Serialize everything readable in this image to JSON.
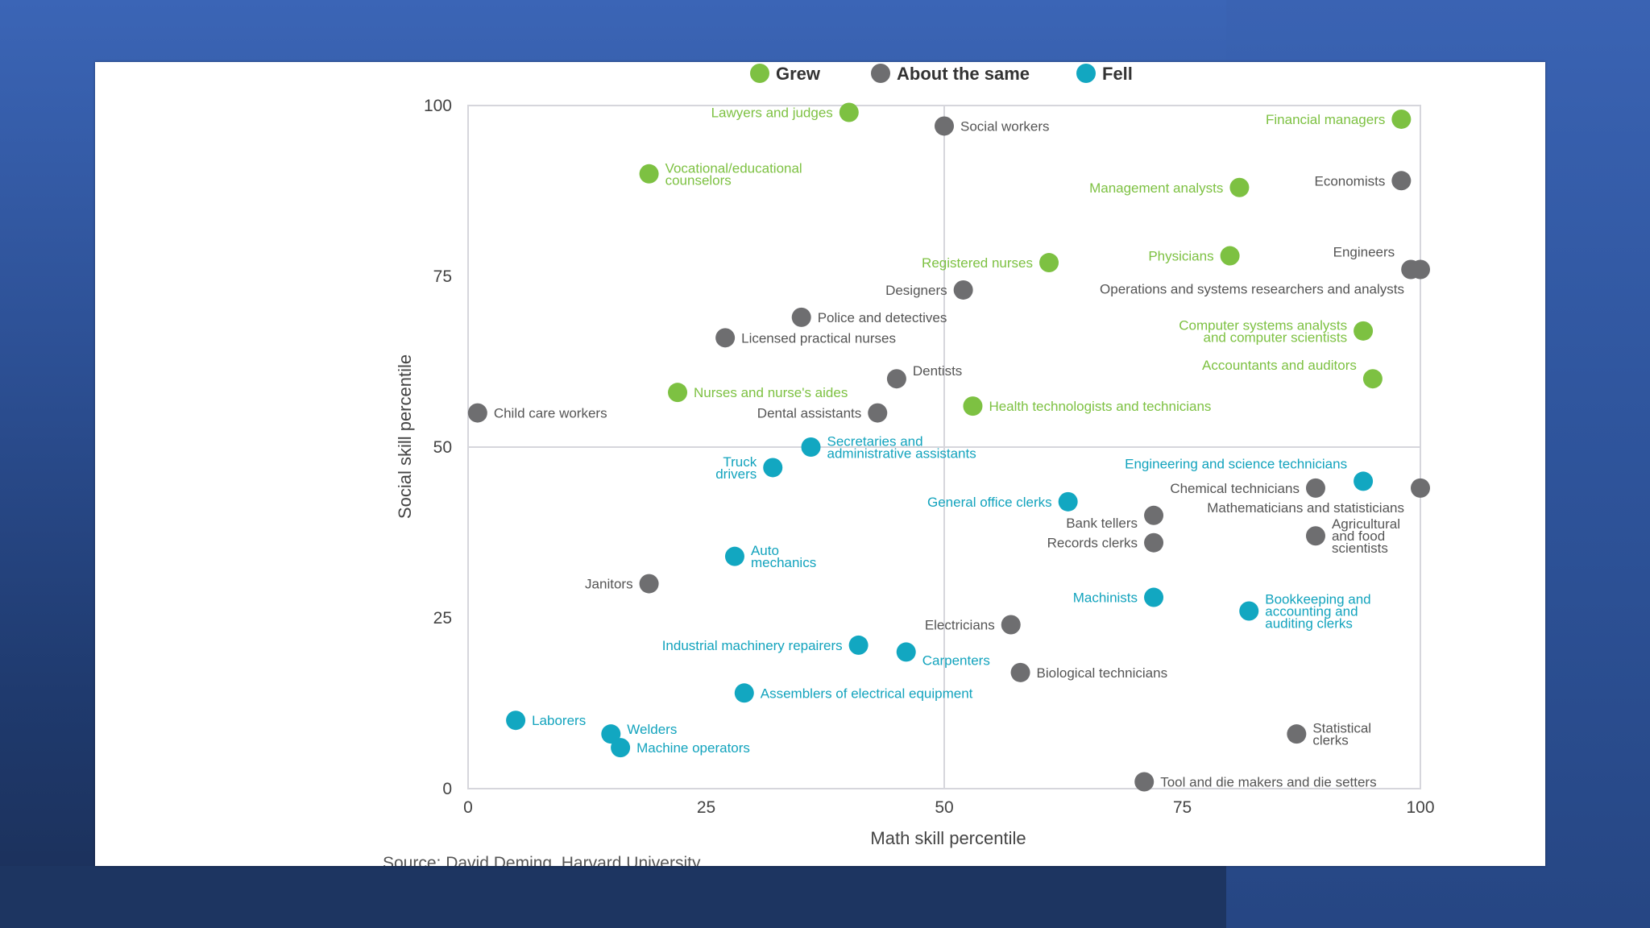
{
  "chart_data": {
    "type": "scatter",
    "xlabel": "Math skill percentile",
    "ylabel": "Social skill percentile",
    "xlim": [
      0,
      100
    ],
    "ylim": [
      0,
      100
    ],
    "xticks": [
      "0",
      "25",
      "50",
      "75",
      "100"
    ],
    "yticks": [
      "0",
      "25",
      "50",
      "75",
      "100"
    ],
    "grid": "center lines at 50",
    "legend": {
      "placement": "top",
      "entries": [
        {
          "key": "grew",
          "label": "Grew",
          "color": "#7dc142"
        },
        {
          "key": "same",
          "label": "About the same",
          "color": "#6e6e70"
        },
        {
          "key": "fell",
          "label": "Fell",
          "color": "#12a7c1"
        }
      ]
    },
    "colors": {
      "grew_text": "#7dc142",
      "same_text": "#555555",
      "fell_text": "#12a3bd"
    },
    "points": [
      {
        "label": [
          "Lawyers and judges"
        ],
        "x": 40,
        "y": 99,
        "group": "grew",
        "side": "left"
      },
      {
        "label": [
          "Social workers"
        ],
        "x": 50,
        "y": 97,
        "group": "same",
        "side": "right"
      },
      {
        "label": [
          "Financial managers"
        ],
        "x": 98,
        "y": 98,
        "group": "grew",
        "side": "left"
      },
      {
        "label": [
          "Vocational/educational",
          "counselors"
        ],
        "x": 19,
        "y": 90,
        "group": "grew",
        "side": "right"
      },
      {
        "label": [
          "Management analysts"
        ],
        "x": 81,
        "y": 88,
        "group": "grew",
        "side": "left"
      },
      {
        "label": [
          "Economists"
        ],
        "x": 98,
        "y": 89,
        "group": "same",
        "side": "left"
      },
      {
        "label": [
          "Registered nurses"
        ],
        "x": 61,
        "y": 77,
        "group": "grew",
        "side": "left"
      },
      {
        "label": [
          "Physicians"
        ],
        "x": 80,
        "y": 78,
        "group": "grew",
        "side": "left"
      },
      {
        "label": [
          "Engineers"
        ],
        "x": 99,
        "y": 76,
        "group": "same",
        "side": "left",
        "dy": -22
      },
      {
        "label": [
          "Designers"
        ],
        "x": 52,
        "y": 73,
        "group": "same",
        "side": "left"
      },
      {
        "label": [
          "Operations and systems researchers and analysts"
        ],
        "x": 100,
        "y": 76,
        "group": "same",
        "side": "left",
        "dy": 24
      },
      {
        "label": [
          "Police and detectives"
        ],
        "x": 35,
        "y": 69,
        "group": "same",
        "side": "right"
      },
      {
        "label": [
          "Licensed practical nurses"
        ],
        "x": 27,
        "y": 66,
        "group": "same",
        "side": "right"
      },
      {
        "label": [
          "Computer systems analysts",
          "and computer scientists"
        ],
        "x": 94,
        "y": 67,
        "group": "grew",
        "side": "left"
      },
      {
        "label": [
          "Dentists"
        ],
        "x": 45,
        "y": 60,
        "group": "same",
        "side": "right",
        "dy": -10
      },
      {
        "label": [
          "Accountants and auditors"
        ],
        "x": 95,
        "y": 60,
        "group": "grew",
        "side": "left",
        "dy": -17
      },
      {
        "label": [
          "Nurses and nurse's aides"
        ],
        "x": 22,
        "y": 58,
        "group": "grew",
        "side": "right"
      },
      {
        "label": [
          "Child care workers"
        ],
        "x": 1,
        "y": 55,
        "group": "same",
        "side": "right"
      },
      {
        "label": [
          "Dental assistants"
        ],
        "x": 43,
        "y": 55,
        "group": "same",
        "side": "left"
      },
      {
        "label": [
          "Health technologists and technicians"
        ],
        "x": 53,
        "y": 56,
        "group": "grew",
        "side": "right"
      },
      {
        "label": [
          "Secretaries and",
          "administrative assistants"
        ],
        "x": 36,
        "y": 50,
        "group": "fell",
        "side": "right"
      },
      {
        "label": [
          "Truck",
          "drivers"
        ],
        "x": 32,
        "y": 47,
        "group": "fell",
        "side": "left"
      },
      {
        "label": [
          "Engineering and science technicians"
        ],
        "x": 94,
        "y": 45,
        "group": "fell",
        "side": "left",
        "dy": -22
      },
      {
        "label": [
          "Chemical technicians"
        ],
        "x": 89,
        "y": 44,
        "group": "same",
        "side": "left"
      },
      {
        "label": [
          "Mathematicians and statisticians"
        ],
        "x": 100,
        "y": 44,
        "group": "same",
        "side": "left",
        "dy": 24
      },
      {
        "label": [
          "General office clerks"
        ],
        "x": 63,
        "y": 42,
        "group": "fell",
        "side": "left"
      },
      {
        "label": [
          "Bank tellers"
        ],
        "x": 72,
        "y": 40,
        "group": "same",
        "side": "left",
        "dy": 9
      },
      {
        "label": [
          "Agricultural",
          "and food",
          "scientists"
        ],
        "x": 89,
        "y": 37,
        "group": "same",
        "side": "right"
      },
      {
        "label": [
          "Records clerks"
        ],
        "x": 72,
        "y": 36,
        "group": "same",
        "side": "left"
      },
      {
        "label": [
          "Auto",
          "mechanics"
        ],
        "x": 28,
        "y": 34,
        "group": "fell",
        "side": "right"
      },
      {
        "label": [
          "Janitors"
        ],
        "x": 19,
        "y": 30,
        "group": "same",
        "side": "left"
      },
      {
        "label": [
          "Machinists"
        ],
        "x": 72,
        "y": 28,
        "group": "fell",
        "side": "left"
      },
      {
        "label": [
          "Bookkeeping and",
          "accounting and",
          "auditing clerks"
        ],
        "x": 82,
        "y": 26,
        "group": "fell",
        "side": "right"
      },
      {
        "label": [
          "Electricians"
        ],
        "x": 57,
        "y": 24,
        "group": "same",
        "side": "left"
      },
      {
        "label": [
          "Industrial machinery repairers"
        ],
        "x": 41,
        "y": 21,
        "group": "fell",
        "side": "left"
      },
      {
        "label": [
          "Carpenters"
        ],
        "x": 46,
        "y": 20,
        "group": "fell",
        "side": "right",
        "dy": 10
      },
      {
        "label": [
          "Biological technicians"
        ],
        "x": 58,
        "y": 17,
        "group": "same",
        "side": "right"
      },
      {
        "label": [
          "Assemblers of electrical equipment"
        ],
        "x": 29,
        "y": 14,
        "group": "fell",
        "side": "right"
      },
      {
        "label": [
          "Laborers"
        ],
        "x": 5,
        "y": 10,
        "group": "fell",
        "side": "right"
      },
      {
        "label": [
          "Welders"
        ],
        "x": 15,
        "y": 8,
        "group": "fell",
        "side": "right",
        "dy": -6
      },
      {
        "label": [
          "Machine operators"
        ],
        "x": 16,
        "y": 6,
        "group": "fell",
        "side": "right"
      },
      {
        "label": [
          "Statistical",
          "clerks"
        ],
        "x": 87,
        "y": 8,
        "group": "same",
        "side": "right"
      },
      {
        "label": [
          "Tool and die makers and die setters"
        ],
        "x": 71,
        "y": 1,
        "group": "same",
        "side": "right"
      }
    ]
  },
  "source": "Source: David Deming, Harvard University"
}
